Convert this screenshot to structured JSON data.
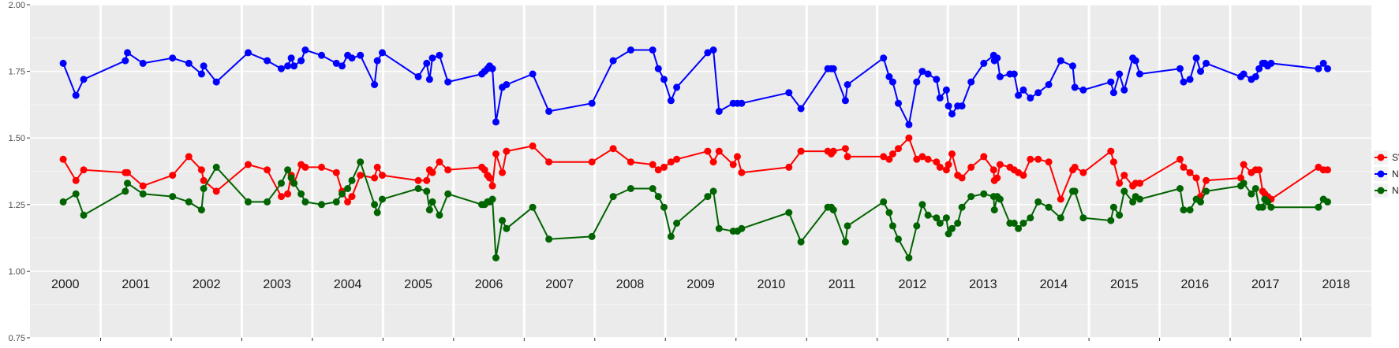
{
  "chart_data": {
    "type": "line",
    "title": "",
    "xlabel": "",
    "ylabel": "",
    "xlim": [
      2000.0,
      2019.0
    ],
    "ylim": [
      0.75,
      2.0
    ],
    "y_ticks": [
      "0.75",
      "1.00",
      "1.25",
      "1.50",
      "1.75",
      "2.00"
    ],
    "y_tick_values": [
      0.75,
      1.0,
      1.25,
      1.5,
      1.75,
      2.0
    ],
    "x_year_labels": [
      "2000",
      "2001",
      "2002",
      "2003",
      "2004",
      "2005",
      "2006",
      "2007",
      "2008",
      "2009",
      "2010",
      "2011",
      "2012",
      "2013",
      "2014",
      "2015",
      "2016",
      "2017",
      "2018"
    ],
    "grid": true,
    "legend_position": "right",
    "series": [
      {
        "name": "SWIR",
        "color": "#ff0000",
        "x": [
          2000.47,
          2000.65,
          2000.76,
          2001.35,
          2001.38,
          2001.6,
          2002.02,
          2002.25,
          2002.43,
          2002.46,
          2002.64,
          2003.09,
          2003.36,
          2003.56,
          2003.65,
          2003.7,
          2003.74,
          2003.84,
          2003.9,
          2004.13,
          2004.34,
          2004.42,
          2004.5,
          2004.56,
          2004.68,
          2004.88,
          2004.92,
          2004.99,
          2005.5,
          2005.62,
          2005.66,
          2005.7,
          2005.8,
          2005.92,
          2006.4,
          2006.44,
          2006.48,
          2006.51,
          2006.55,
          2006.6,
          2006.69,
          2006.75,
          2007.12,
          2007.35,
          2007.96,
          2008.26,
          2008.51,
          2008.82,
          2008.9,
          2008.98,
          2009.08,
          2009.16,
          2009.6,
          2009.68,
          2009.76,
          2009.96,
          2010.02,
          2010.08,
          2010.75,
          2010.92,
          2011.3,
          2011.35,
          2011.38,
          2011.55,
          2011.58,
          2012.09,
          2012.17,
          2012.22,
          2012.3,
          2012.45,
          2012.56,
          2012.64,
          2012.72,
          2012.84,
          2012.89,
          2012.98,
          2013.01,
          2013.06,
          2013.14,
          2013.2,
          2013.33,
          2013.51,
          2013.65,
          2013.66,
          2013.7,
          2013.74,
          2013.88,
          2013.94,
          2014.0,
          2014.07,
          2014.17,
          2014.28,
          2014.43,
          2014.6,
          2014.77,
          2014.8,
          2014.92,
          2015.31,
          2015.35,
          2015.43,
          2015.5,
          2015.62,
          2015.66,
          2015.72,
          2016.29,
          2016.34,
          2016.43,
          2016.52,
          2016.58,
          2016.66,
          2017.15,
          2017.19,
          2017.3,
          2017.36,
          2017.41,
          2017.46,
          2017.49,
          2017.53,
          2017.58,
          2018.25,
          2018.32,
          2018.38
        ],
        "values": [
          1.42,
          1.34,
          1.38,
          1.37,
          1.37,
          1.32,
          1.36,
          1.43,
          1.38,
          1.34,
          1.3,
          1.4,
          1.38,
          1.28,
          1.29,
          1.36,
          1.33,
          1.4,
          1.39,
          1.39,
          1.37,
          1.3,
          1.26,
          1.28,
          1.36,
          1.35,
          1.39,
          1.36,
          1.34,
          1.34,
          1.38,
          1.37,
          1.41,
          1.38,
          1.39,
          1.38,
          1.36,
          1.35,
          1.32,
          1.44,
          1.37,
          1.45,
          1.47,
          1.41,
          1.41,
          1.46,
          1.41,
          1.4,
          1.38,
          1.39,
          1.41,
          1.42,
          1.45,
          1.41,
          1.45,
          1.4,
          1.43,
          1.37,
          1.39,
          1.45,
          1.45,
          1.44,
          1.45,
          1.46,
          1.43,
          1.43,
          1.42,
          1.44,
          1.46,
          1.5,
          1.42,
          1.43,
          1.42,
          1.41,
          1.39,
          1.38,
          1.4,
          1.44,
          1.36,
          1.35,
          1.39,
          1.43,
          1.38,
          1.34,
          1.35,
          1.4,
          1.39,
          1.38,
          1.37,
          1.36,
          1.42,
          1.42,
          1.41,
          1.27,
          1.38,
          1.39,
          1.37,
          1.45,
          1.41,
          1.33,
          1.36,
          1.32,
          1.33,
          1.33,
          1.42,
          1.39,
          1.37,
          1.35,
          1.28,
          1.34,
          1.35,
          1.4,
          1.37,
          1.38,
          1.38,
          1.3,
          1.29,
          1.28,
          1.27,
          1.39,
          1.38,
          1.38
        ]
      },
      {
        "name": "NDVI",
        "color": "#0000ff",
        "x": [
          2000.47,
          2000.65,
          2000.76,
          2001.35,
          2001.38,
          2001.6,
          2002.02,
          2002.25,
          2002.43,
          2002.46,
          2002.64,
          2003.09,
          2003.36,
          2003.56,
          2003.65,
          2003.7,
          2003.74,
          2003.84,
          2003.9,
          2004.13,
          2004.34,
          2004.42,
          2004.5,
          2004.56,
          2004.68,
          2004.88,
          2004.92,
          2004.99,
          2005.5,
          2005.62,
          2005.66,
          2005.7,
          2005.8,
          2005.92,
          2006.4,
          2006.44,
          2006.48,
          2006.51,
          2006.55,
          2006.6,
          2006.69,
          2006.75,
          2007.12,
          2007.35,
          2007.96,
          2008.26,
          2008.51,
          2008.82,
          2008.9,
          2008.98,
          2009.08,
          2009.16,
          2009.6,
          2009.68,
          2009.76,
          2009.96,
          2010.02,
          2010.08,
          2010.75,
          2010.92,
          2011.3,
          2011.35,
          2011.38,
          2011.55,
          2011.58,
          2012.09,
          2012.17,
          2012.22,
          2012.3,
          2012.45,
          2012.56,
          2012.64,
          2012.72,
          2012.84,
          2012.89,
          2012.98,
          2013.01,
          2013.06,
          2013.14,
          2013.2,
          2013.33,
          2013.51,
          2013.65,
          2013.66,
          2013.7,
          2013.74,
          2013.88,
          2013.94,
          2014.0,
          2014.07,
          2014.17,
          2014.28,
          2014.43,
          2014.6,
          2014.77,
          2014.8,
          2014.92,
          2015.31,
          2015.35,
          2015.43,
          2015.5,
          2015.62,
          2015.66,
          2015.72,
          2016.29,
          2016.34,
          2016.43,
          2016.52,
          2016.58,
          2016.66,
          2017.15,
          2017.19,
          2017.3,
          2017.36,
          2017.41,
          2017.46,
          2017.49,
          2017.53,
          2017.58,
          2018.25,
          2018.32,
          2018.38
        ],
        "values": [
          1.78,
          1.66,
          1.72,
          1.79,
          1.82,
          1.78,
          1.8,
          1.78,
          1.74,
          1.77,
          1.71,
          1.82,
          1.79,
          1.76,
          1.77,
          1.8,
          1.77,
          1.79,
          1.83,
          1.81,
          1.78,
          1.77,
          1.81,
          1.8,
          1.81,
          1.7,
          1.79,
          1.82,
          1.73,
          1.78,
          1.72,
          1.8,
          1.81,
          1.71,
          1.74,
          1.75,
          1.76,
          1.77,
          1.76,
          1.56,
          1.69,
          1.7,
          1.74,
          1.6,
          1.63,
          1.79,
          1.83,
          1.83,
          1.76,
          1.72,
          1.64,
          1.69,
          1.82,
          1.83,
          1.6,
          1.63,
          1.63,
          1.63,
          1.67,
          1.61,
          1.76,
          1.76,
          1.76,
          1.64,
          1.7,
          1.8,
          1.73,
          1.71,
          1.63,
          1.55,
          1.71,
          1.75,
          1.74,
          1.72,
          1.65,
          1.68,
          1.62,
          1.59,
          1.62,
          1.62,
          1.71,
          1.78,
          1.81,
          1.79,
          1.8,
          1.73,
          1.74,
          1.74,
          1.66,
          1.68,
          1.65,
          1.67,
          1.7,
          1.79,
          1.77,
          1.69,
          1.68,
          1.71,
          1.67,
          1.74,
          1.68,
          1.8,
          1.79,
          1.74,
          1.76,
          1.71,
          1.72,
          1.8,
          1.75,
          1.78,
          1.73,
          1.74,
          1.72,
          1.73,
          1.76,
          1.78,
          1.78,
          1.77,
          1.78,
          1.76,
          1.78,
          1.76
        ]
      },
      {
        "name": "NDWI",
        "color": "#006400",
        "x": [
          2000.47,
          2000.65,
          2000.76,
          2001.35,
          2001.38,
          2001.6,
          2002.02,
          2002.25,
          2002.43,
          2002.46,
          2002.64,
          2003.09,
          2003.36,
          2003.56,
          2003.65,
          2003.7,
          2003.74,
          2003.84,
          2003.9,
          2004.13,
          2004.34,
          2004.42,
          2004.5,
          2004.56,
          2004.68,
          2004.88,
          2004.92,
          2004.99,
          2005.5,
          2005.62,
          2005.66,
          2005.7,
          2005.8,
          2005.92,
          2006.4,
          2006.44,
          2006.48,
          2006.51,
          2006.55,
          2006.6,
          2006.69,
          2006.75,
          2007.12,
          2007.35,
          2007.96,
          2008.26,
          2008.51,
          2008.82,
          2008.9,
          2008.98,
          2009.08,
          2009.16,
          2009.6,
          2009.68,
          2009.76,
          2009.96,
          2010.02,
          2010.08,
          2010.75,
          2010.92,
          2011.3,
          2011.35,
          2011.38,
          2011.55,
          2011.58,
          2012.09,
          2012.17,
          2012.22,
          2012.3,
          2012.45,
          2012.56,
          2012.64,
          2012.72,
          2012.84,
          2012.89,
          2012.98,
          2013.01,
          2013.06,
          2013.14,
          2013.2,
          2013.33,
          2013.51,
          2013.65,
          2013.66,
          2013.7,
          2013.74,
          2013.88,
          2013.94,
          2014.0,
          2014.07,
          2014.17,
          2014.28,
          2014.43,
          2014.6,
          2014.77,
          2014.8,
          2014.92,
          2015.31,
          2015.35,
          2015.43,
          2015.5,
          2015.62,
          2015.66,
          2015.72,
          2016.29,
          2016.34,
          2016.43,
          2016.52,
          2016.58,
          2016.66,
          2017.15,
          2017.19,
          2017.3,
          2017.36,
          2017.41,
          2017.46,
          2017.49,
          2017.53,
          2017.58,
          2018.25,
          2018.32,
          2018.38
        ],
        "values": [
          1.26,
          1.29,
          1.21,
          1.3,
          1.33,
          1.29,
          1.28,
          1.26,
          1.23,
          1.31,
          1.39,
          1.26,
          1.26,
          1.33,
          1.38,
          1.35,
          1.33,
          1.29,
          1.26,
          1.25,
          1.26,
          1.29,
          1.31,
          1.34,
          1.41,
          1.25,
          1.22,
          1.27,
          1.31,
          1.3,
          1.23,
          1.26,
          1.21,
          1.29,
          1.25,
          1.25,
          1.26,
          1.26,
          1.27,
          1.05,
          1.19,
          1.16,
          1.24,
          1.12,
          1.13,
          1.28,
          1.31,
          1.31,
          1.28,
          1.24,
          1.13,
          1.18,
          1.28,
          1.3,
          1.16,
          1.15,
          1.15,
          1.16,
          1.22,
          1.11,
          1.24,
          1.24,
          1.23,
          1.11,
          1.17,
          1.26,
          1.22,
          1.17,
          1.12,
          1.05,
          1.17,
          1.25,
          1.21,
          1.2,
          1.18,
          1.2,
          1.14,
          1.16,
          1.18,
          1.24,
          1.28,
          1.29,
          1.28,
          1.23,
          1.28,
          1.27,
          1.18,
          1.18,
          1.16,
          1.18,
          1.2,
          1.26,
          1.24,
          1.2,
          1.3,
          1.3,
          1.2,
          1.19,
          1.24,
          1.21,
          1.3,
          1.26,
          1.28,
          1.27,
          1.31,
          1.23,
          1.23,
          1.27,
          1.26,
          1.3,
          1.32,
          1.33,
          1.29,
          1.31,
          1.24,
          1.24,
          1.27,
          1.26,
          1.24,
          1.24,
          1.27,
          1.26
        ]
      }
    ]
  }
}
